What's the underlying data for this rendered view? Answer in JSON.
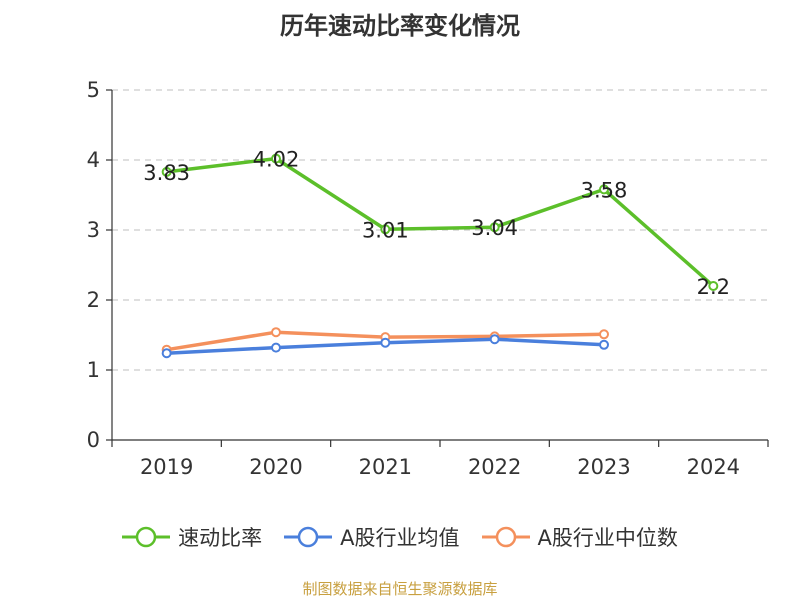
{
  "chart_data": {
    "type": "line",
    "title": "历年速动比率变化情况",
    "categories": [
      "2019",
      "2020",
      "2021",
      "2022",
      "2023",
      "2024"
    ],
    "ylim": [
      0,
      5
    ],
    "yticks": [
      "0",
      "1",
      "2",
      "3",
      "4",
      "5"
    ],
    "grid": true,
    "legend_position": "bottom",
    "series": [
      {
        "name": "速动比率",
        "color": "#5cbf2a",
        "values": [
          3.83,
          4.02,
          3.01,
          3.04,
          3.58,
          2.2
        ],
        "labels": [
          "3.83",
          "4.02",
          "3.01",
          "3.04",
          "3.58",
          "2.2"
        ]
      },
      {
        "name": "A股行业均值",
        "color": "#4a7fdc",
        "values": [
          1.24,
          1.32,
          1.39,
          1.44,
          1.36,
          null
        ]
      },
      {
        "name": "A股行业中位数",
        "color": "#f4905c",
        "values": [
          1.29,
          1.54,
          1.47,
          1.48,
          1.51,
          null
        ]
      }
    ]
  },
  "source": "制图数据来自恒生聚源数据库"
}
